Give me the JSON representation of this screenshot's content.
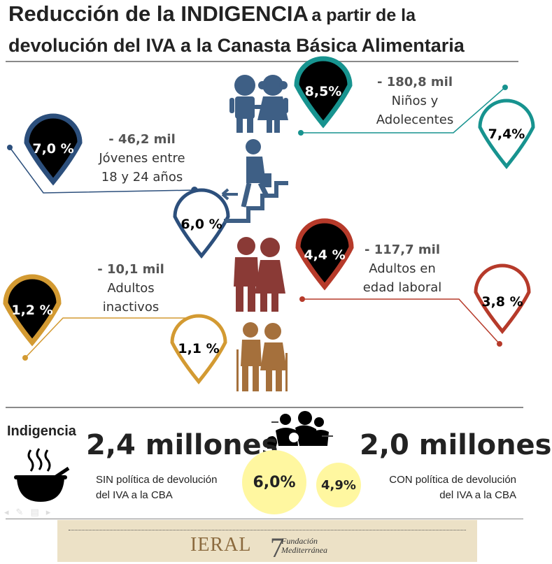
{
  "title": {
    "line1_big": "Reducción de la INDIGENCIA",
    "line1_small": "a partir de la",
    "line2": "devolución del IVA a la Canasta Básica Alimentaria"
  },
  "groups": {
    "ninos": {
      "amount": "- 180,8 mil",
      "label1": "Niños y",
      "label2": "Adolecentes",
      "before": "8,5%",
      "after": "7,4%"
    },
    "jovenes": {
      "amount": "- 46,2 mil",
      "label1": "Jóvenes entre",
      "label2": "18 y 24 años",
      "before": "7,0 %",
      "after": "6,0 %"
    },
    "laboral": {
      "amount": "- 117,7 mil",
      "label1": "Adultos en",
      "label2": "edad laboral",
      "before": "4,4 %",
      "after": "3,8 %"
    },
    "inactivos": {
      "amount": "- 10,1 mil",
      "label1": "Adultos",
      "label2": "inactivos",
      "before": "1,2 %",
      "after": "1,1 %"
    }
  },
  "summary": {
    "indigencia_label": "Indigencia",
    "sin_total": "2,4 millones",
    "sin_note1": "SIN política de devolución",
    "sin_note2": "del IVA a la CBA",
    "sin_pct": "6,0%",
    "con_total": "2,0 millones",
    "con_note1": "CON política de devolución",
    "con_note2": "del IVA a la CBA",
    "con_pct": "4,9%"
  },
  "footer": {
    "ieral": "IERAL",
    "fundacion1": "Fundación",
    "fundacion2": "Mediterránea"
  },
  "colors": {
    "ninos": "#17938f",
    "jovenes": "#2c4f7c",
    "laboral": "#b63a2a",
    "inactivos": "#d39a32",
    "figure_blue": "#3e5f85",
    "figure_red": "#8a3a36",
    "figure_brown": "#a5703c",
    "summary_circle": "#fff7a0"
  }
}
